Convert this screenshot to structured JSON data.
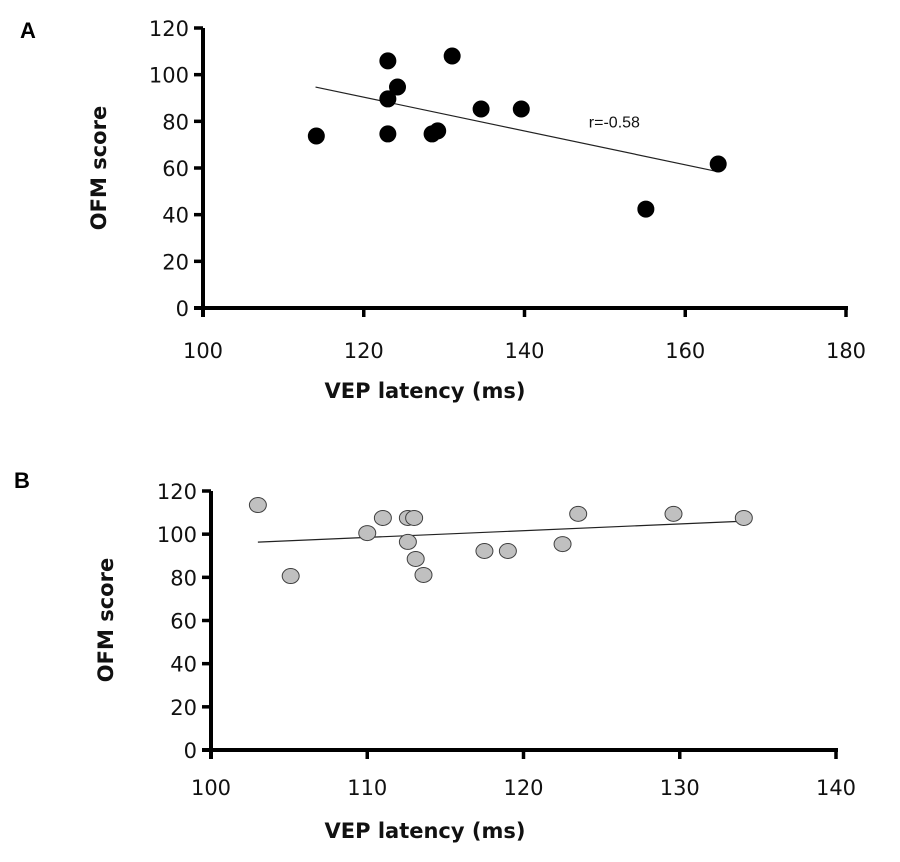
{
  "chart_data": [
    {
      "type": "scatter",
      "panel": "A",
      "title": "",
      "xlabel": "VEP latency (ms)",
      "ylabel": "OFM score",
      "xlim": [
        100,
        180
      ],
      "ylim": [
        0,
        120
      ],
      "xticks": [
        100,
        120,
        140,
        160,
        180
      ],
      "yticks": [
        0,
        20,
        40,
        60,
        80,
        100,
        120
      ],
      "grid": false,
      "marker": {
        "fill": "#000000",
        "stroke": "#000000"
      },
      "points": [
        {
          "x": 114.1,
          "y": 73.7
        },
        {
          "x": 123.0,
          "y": 105.9
        },
        {
          "x": 123.0,
          "y": 89.6
        },
        {
          "x": 124.2,
          "y": 94.7
        },
        {
          "x": 123.0,
          "y": 74.6
        },
        {
          "x": 128.5,
          "y": 74.6
        },
        {
          "x": 129.2,
          "y": 75.9
        },
        {
          "x": 131.0,
          "y": 108.0
        },
        {
          "x": 134.6,
          "y": 85.3
        },
        {
          "x": 139.6,
          "y": 85.3
        },
        {
          "x": 155.1,
          "y": 42.4
        },
        {
          "x": 164.1,
          "y": 61.7
        }
      ],
      "trendline": {
        "x": [
          114.0,
          163.7
        ],
        "y": [
          94.7,
          58.7
        ]
      },
      "annotation": {
        "text": "r=-0.58",
        "x": 148,
        "y": 80
      }
    },
    {
      "type": "scatter",
      "panel": "B",
      "title": "",
      "xlabel": "VEP latency (ms)",
      "ylabel": "OFM score",
      "xlim": [
        100,
        140
      ],
      "ylim": [
        0,
        120
      ],
      "xticks": [
        100,
        110,
        120,
        130,
        140
      ],
      "yticks": [
        0,
        20,
        40,
        60,
        80,
        100,
        120
      ],
      "grid": false,
      "marker": {
        "fill": "#c0c0c0",
        "stroke": "#404040"
      },
      "points": [
        {
          "x": 103.0,
          "y": 113.5
        },
        {
          "x": 105.1,
          "y": 80.6
        },
        {
          "x": 110.0,
          "y": 100.5
        },
        {
          "x": 111.0,
          "y": 107.5
        },
        {
          "x": 112.6,
          "y": 107.5
        },
        {
          "x": 113.0,
          "y": 107.5
        },
        {
          "x": 112.6,
          "y": 96.4
        },
        {
          "x": 113.1,
          "y": 88.5
        },
        {
          "x": 113.6,
          "y": 81.1
        },
        {
          "x": 117.5,
          "y": 92.2
        },
        {
          "x": 119.0,
          "y": 92.2
        },
        {
          "x": 122.5,
          "y": 95.4
        },
        {
          "x": 123.5,
          "y": 109.4
        },
        {
          "x": 129.6,
          "y": 109.4
        },
        {
          "x": 134.1,
          "y": 107.5
        }
      ],
      "trendline": {
        "x": [
          103.0,
          134.0
        ],
        "y": [
          96.3,
          106.0
        ]
      }
    }
  ]
}
